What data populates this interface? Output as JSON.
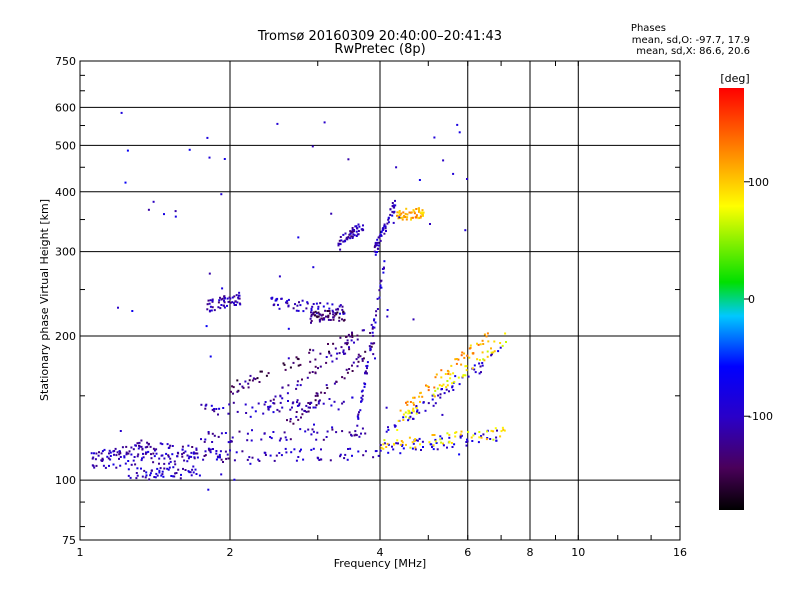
{
  "chart_data": {
    "type": "scatter",
    "title": "Tromsø 20160309 20:40:00–20:41:43",
    "subtitle": "RwPretec (8p)",
    "xlabel": "Frequency [MHz]",
    "ylabel": "Stationary phase Virtual Height [km]",
    "x_scale": "log",
    "y_scale": "log",
    "xlim": [
      1,
      16
    ],
    "ylim": [
      75,
      750
    ],
    "x_ticks": [
      1,
      2,
      4,
      6,
      8,
      10,
      16
    ],
    "y_ticks": [
      75,
      100,
      200,
      300,
      400,
      500,
      600,
      750
    ],
    "phase_info": {
      "heading": "Phases",
      "line_o": "mean, sd,O: -97.7, 17.9",
      "line_x": "mean, sd,X:  86.6, 20.6"
    },
    "colorbar": {
      "label": "[deg]",
      "range": [
        -180,
        180
      ],
      "ticks": [
        -100,
        0,
        100
      ],
      "colormap": "rainbow: black → purple → blue → cyan → green → yellow → orange → red"
    },
    "trace_groups": [
      {
        "x0": 1.05,
        "x1": 1.75,
        "h0": 108,
        "h1": 112,
        "phase": -100
      },
      {
        "x0": 1.25,
        "x1": 1.75,
        "h0": 103,
        "h1": 104,
        "phase": -100
      },
      {
        "x0": 1.3,
        "x1": 2.0,
        "h0": 118,
        "h1": 112,
        "phase": -110
      },
      {
        "x0": 1.05,
        "x1": 1.4,
        "h0": 112,
        "h1": 116,
        "phase": -105
      },
      {
        "x0": 1.75,
        "x1": 4.0,
        "h0": 113,
        "h1": 113,
        "phase": -100
      },
      {
        "x0": 4.0,
        "x1": 7.0,
        "h0": 116,
        "h1": 124,
        "phase": -90
      },
      {
        "x0": 4.0,
        "x1": 7.2,
        "h0": 118,
        "h1": 126,
        "phase": 90
      },
      {
        "x0": 1.75,
        "x1": 3.8,
        "h0": 123,
        "h1": 126,
        "phase": -110
      },
      {
        "x0": 1.75,
        "x1": 3.6,
        "h0": 140,
        "h1": 145,
        "phase": -105
      },
      {
        "x0": 2.0,
        "x1": 3.6,
        "h0": 155,
        "h1": 200,
        "phase": -140
      },
      {
        "x0": 2.3,
        "x1": 3.9,
        "h0": 140,
        "h1": 210,
        "phase": -120
      },
      {
        "x0": 2.6,
        "x1": 3.9,
        "h0": 130,
        "h1": 190,
        "phase": -130
      },
      {
        "x0": 3.6,
        "x1": 4.1,
        "h0": 130,
        "h1": 290,
        "phase": -100
      },
      {
        "x0": 4.1,
        "x1": 7.0,
        "h0": 125,
        "h1": 185,
        "phase": -95
      },
      {
        "x0": 4.3,
        "x1": 7.2,
        "h0": 130,
        "h1": 200,
        "phase": 85
      },
      {
        "x0": 4.4,
        "x1": 6.6,
        "h0": 140,
        "h1": 200,
        "phase": 115
      },
      {
        "x0": 1.8,
        "x1": 2.1,
        "h0": 230,
        "h1": 240,
        "phase": -110
      },
      {
        "x0": 2.4,
        "x1": 3.4,
        "h0": 235,
        "h1": 225,
        "phase": -105
      },
      {
        "x0": 2.9,
        "x1": 3.4,
        "h0": 218,
        "h1": 222,
        "phase": -140
      },
      {
        "x0": 3.3,
        "x1": 3.7,
        "h0": 310,
        "h1": 340,
        "phase": -110
      },
      {
        "x0": 3.9,
        "x1": 4.3,
        "h0": 300,
        "h1": 380,
        "phase": -100
      },
      {
        "x0": 4.3,
        "x1": 4.9,
        "h0": 360,
        "h1": 360,
        "phase": 110
      },
      {
        "x0": 1.1,
        "x1": 6.0,
        "h0": 95,
        "h1": 600,
        "phase": -90
      }
    ]
  }
}
